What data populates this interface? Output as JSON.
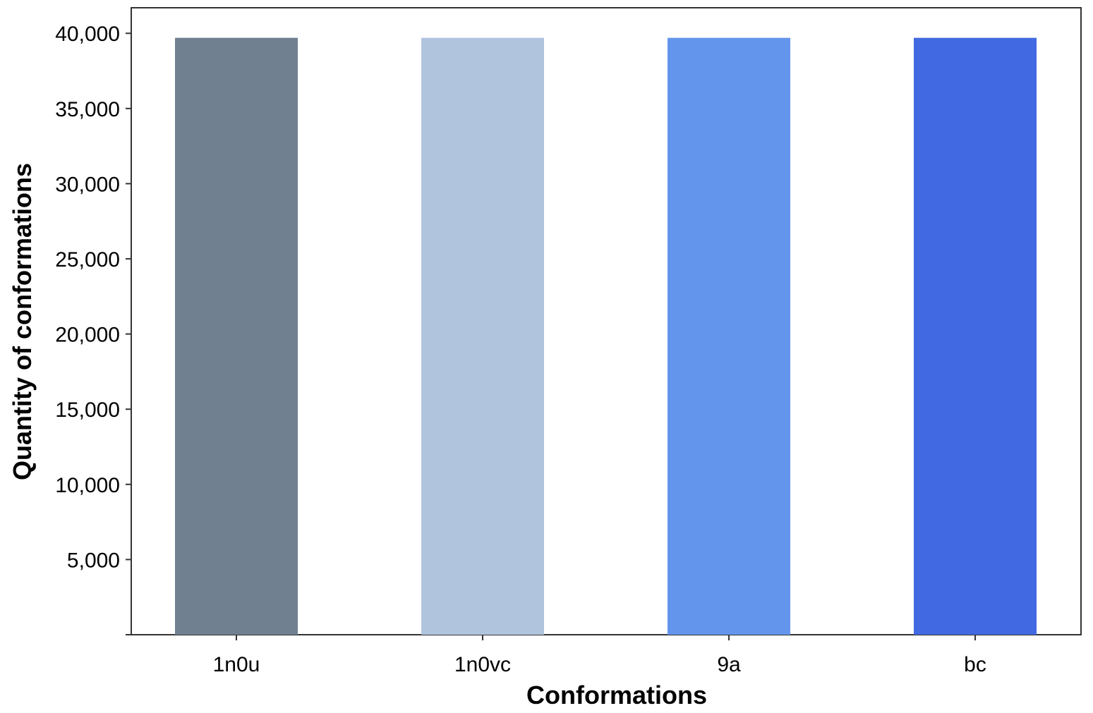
{
  "chart_data": {
    "type": "bar",
    "title": "",
    "xlabel": "Conformations",
    "ylabel": "Quantity of conformations",
    "categories": [
      "1n0u",
      "1n0vc",
      "9a",
      "bc"
    ],
    "values": [
      39700,
      39700,
      39700,
      39700
    ],
    "colors": [
      "#708090",
      "#b0c4de",
      "#6495ed",
      "#4169e1"
    ],
    "ylim": [
      0,
      41700
    ],
    "yticks": [
      5000,
      10000,
      15000,
      20000,
      25000,
      30000,
      35000,
      40000
    ],
    "ytick_labels": [
      "5,000",
      "10,000",
      "15,000",
      "20,000",
      "25,000",
      "30,000",
      "35,000",
      "40,000"
    ],
    "grid": false,
    "legend": "none"
  }
}
